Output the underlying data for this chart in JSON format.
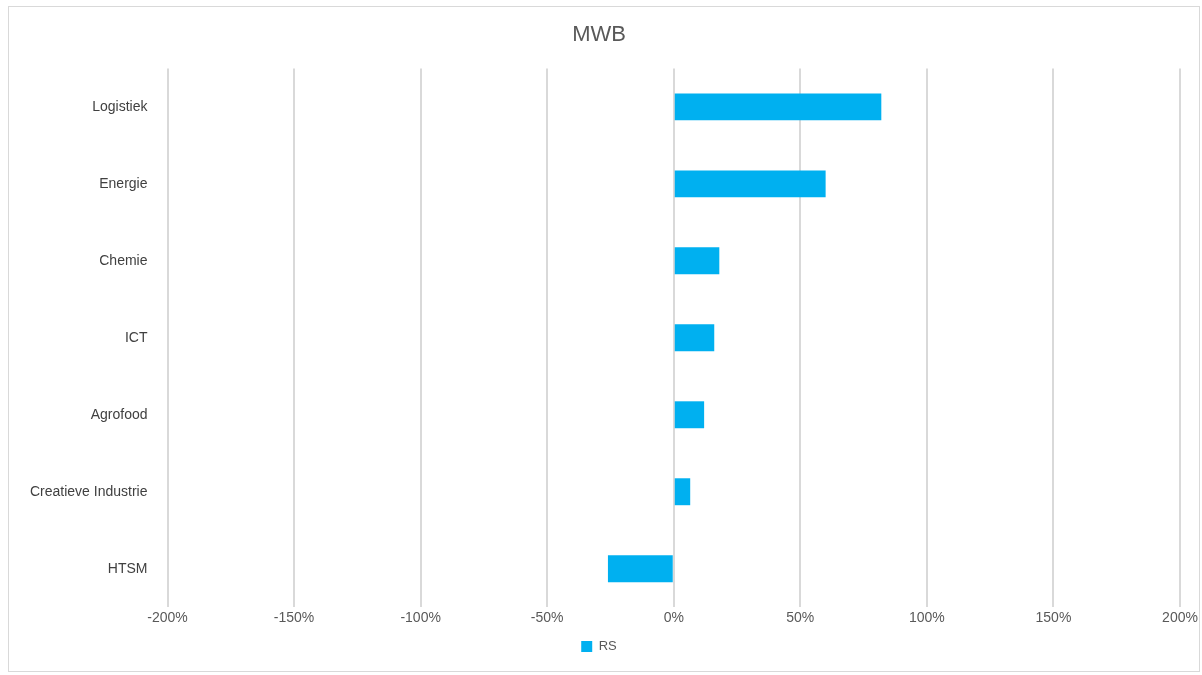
{
  "chart_data": {
    "type": "bar",
    "orientation": "horizontal",
    "title": "MWB",
    "categories": [
      "Logistiek",
      "Energie",
      "Chemie",
      "ICT",
      "Agrofood",
      "Creatieve Industrie",
      "HTSM"
    ],
    "series": [
      {
        "name": "RS",
        "color": "#00b0f0",
        "values": [
          82,
          60,
          18,
          16,
          12,
          6.5,
          -26
        ]
      }
    ],
    "xlim": [
      -200,
      200
    ],
    "xticks": [
      {
        "value": -200,
        "label": "-200%"
      },
      {
        "value": -150,
        "label": "-150%"
      },
      {
        "value": -100,
        "label": "-100%"
      },
      {
        "value": -50,
        "label": "-50%"
      },
      {
        "value": 0,
        "label": "0%"
      },
      {
        "value": 50,
        "label": "50%"
      },
      {
        "value": 100,
        "label": "100%"
      },
      {
        "value": 150,
        "label": "150%"
      },
      {
        "value": 200,
        "label": "200%"
      }
    ],
    "grid": "x",
    "legend": "bottom"
  }
}
